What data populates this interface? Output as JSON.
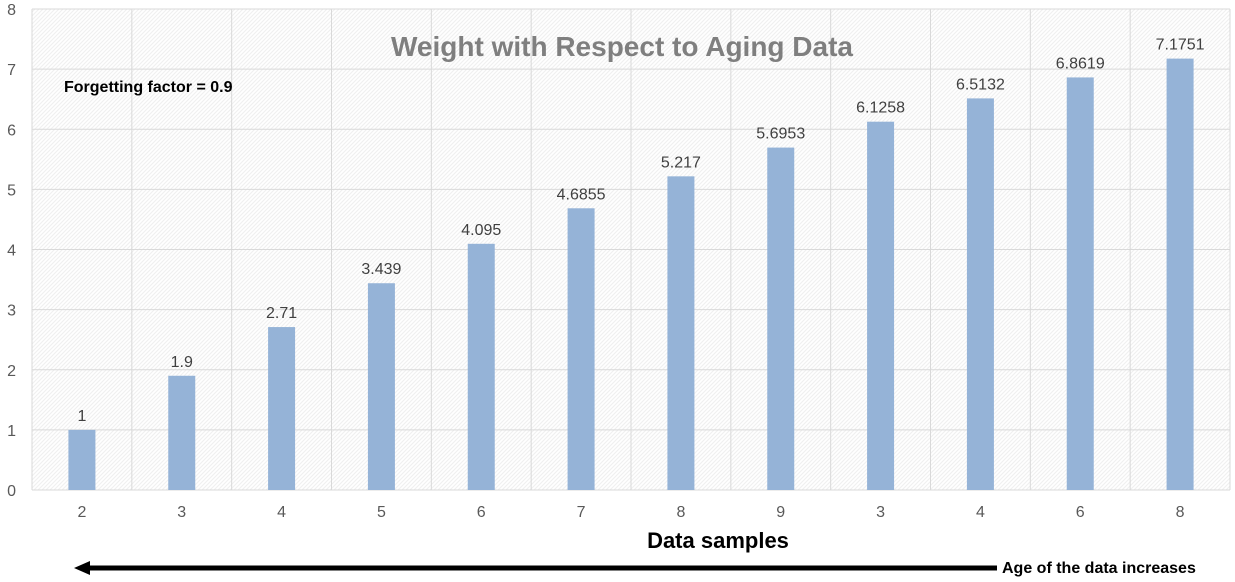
{
  "chart_data": {
    "type": "bar",
    "title": "Weight with Respect to Aging Data",
    "annotation": "Forgetting factor = 0.9",
    "xlabel": "Data samples",
    "ylabel": "",
    "categories": [
      "2",
      "3",
      "4",
      "5",
      "6",
      "7",
      "8",
      "9",
      "3",
      "4",
      "6",
      "8"
    ],
    "values": [
      1,
      1.9,
      2.71,
      3.439,
      4.095,
      4.6855,
      5.217,
      5.6953,
      6.1258,
      6.5132,
      6.8619,
      7.1751
    ],
    "data_labels": [
      "1",
      "1.9",
      "2.71",
      "3.439",
      "4.095",
      "4.6855",
      "5.217",
      "5.6953",
      "6.1258",
      "6.5132",
      "6.8619",
      "7.1751"
    ],
    "ylim": [
      0,
      8
    ],
    "yticks": [
      "0",
      "1",
      "2",
      "3",
      "4",
      "5",
      "6",
      "7",
      "8"
    ],
    "grid": true,
    "arrow_caption": "Age of the data increases",
    "bar_color": "#95b3d7",
    "grid_color": "#d9d9d9"
  }
}
